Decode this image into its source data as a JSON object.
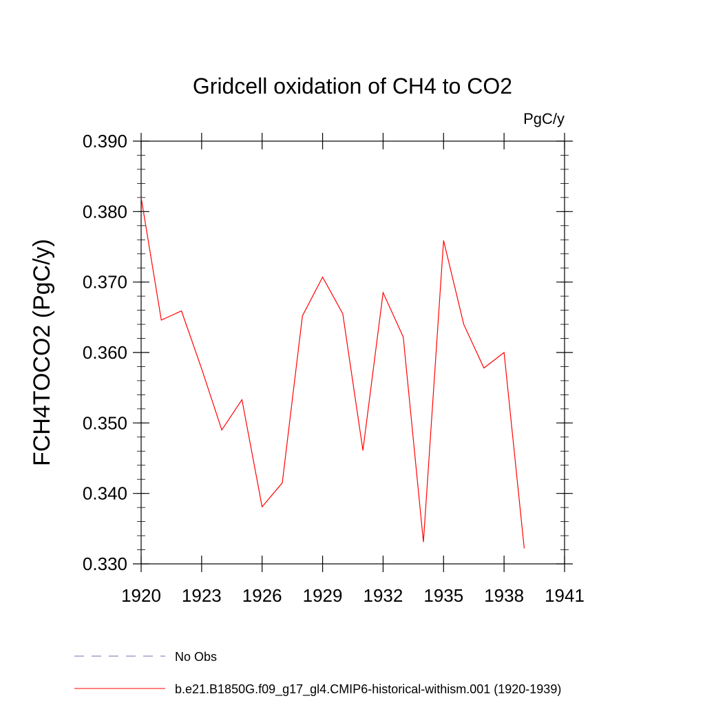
{
  "chart_data": {
    "type": "line",
    "title": "Gridcell oxidation of CH4 to CO2",
    "units": "PgC/y",
    "ylabel": "FCH4TOCO2  (PgC/y)",
    "xlabel": "",
    "xlim": [
      1920,
      1941
    ],
    "ylim": [
      0.33,
      0.39
    ],
    "x_ticks": [
      1920,
      1923,
      1926,
      1929,
      1932,
      1935,
      1938,
      1941
    ],
    "x_tick_labels": [
      "1920",
      "1923",
      "1926",
      "1929",
      "1932",
      "1935",
      "1938",
      "1941"
    ],
    "y_ticks": [
      0.33,
      0.34,
      0.35,
      0.36,
      0.37,
      0.38,
      0.39
    ],
    "y_tick_labels": [
      "0.330",
      "0.340",
      "0.350",
      "0.360",
      "0.370",
      "0.380",
      "0.390"
    ],
    "grid": false,
    "legend_position": "bottom-left",
    "series": [
      {
        "name": "b.e21.B1850G.f09_g17_gl4.CMIP6-historical-withism.001 (1920-1939)",
        "color": "#ff0000",
        "dash": "solid",
        "x": [
          1920,
          1921,
          1922,
          1923,
          1924,
          1925,
          1926,
          1927,
          1928,
          1929,
          1930,
          1931,
          1932,
          1933,
          1934,
          1935,
          1936,
          1937,
          1938,
          1939
        ],
        "values": [
          0.382,
          0.3646,
          0.3659,
          0.3577,
          0.349,
          0.3533,
          0.3381,
          0.3415,
          0.3652,
          0.3707,
          0.3655,
          0.3461,
          0.3685,
          0.3622,
          0.3331,
          0.3759,
          0.364,
          0.3578,
          0.36,
          0.3322
        ]
      }
    ],
    "legend": [
      {
        "label": "No Obs",
        "color": "#7b68a8",
        "dash": "dashed"
      },
      {
        "label": "b.e21.B1850G.f09_g17_gl4.CMIP6-historical-withism.001 (1920-1939)",
        "color": "#ff0000",
        "dash": "solid"
      }
    ]
  }
}
